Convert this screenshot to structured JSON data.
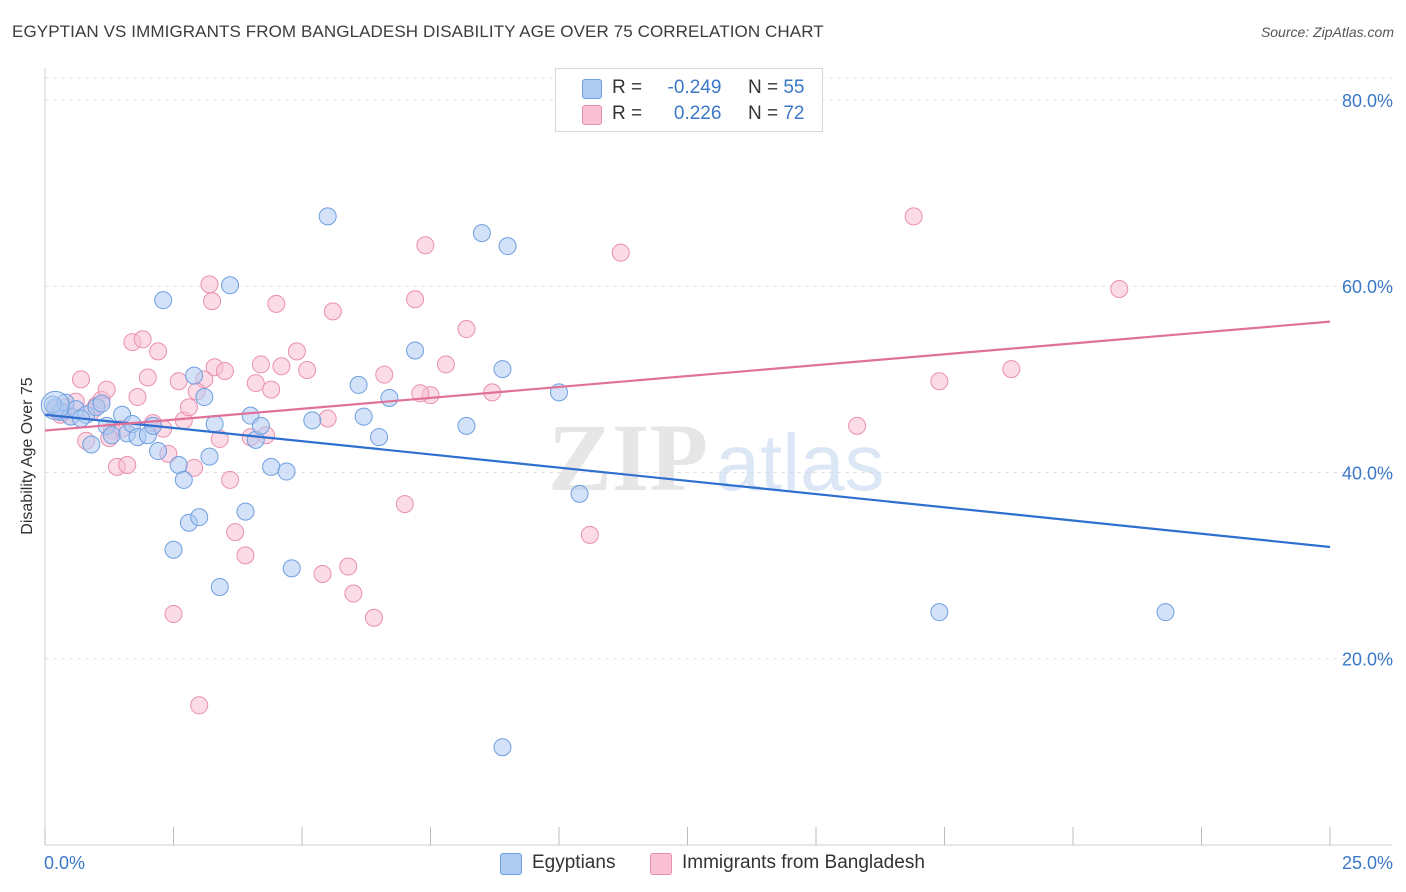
{
  "header": {
    "title": "EGYPTIAN VS IMMIGRANTS FROM BANGLADESH DISABILITY AGE OVER 75 CORRELATION CHART",
    "source": "Source: ZipAtlas.com"
  },
  "watermark": {
    "text_zip": "ZIP",
    "text_atlas": "atlas"
  },
  "legend_top": {
    "rows": [
      {
        "r_label": "R =",
        "r_value": "-0.249",
        "n_label": "N =",
        "n_value": "55"
      },
      {
        "r_label": "R =",
        "r_value": "0.226",
        "n_label": "N =",
        "n_value": "72"
      }
    ]
  },
  "legend_bottom": {
    "items": [
      "Egyptians",
      "Immigrants from Bangladesh"
    ]
  },
  "colors": {
    "blue_fill": "#aecbf2",
    "blue_stroke": "#6f9fe0",
    "blue_line": "#2f6fd0",
    "pink_fill": "#f8c0d2",
    "pink_stroke": "#ea8fae",
    "pink_line": "#e0729a",
    "axis_text": "#3b78c8"
  },
  "chart_data": {
    "type": "scatter",
    "title": "EGYPTIAN VS IMMIGRANTS FROM BANGLADESH DISABILITY AGE OVER 75 CORRELATION CHART",
    "xlabel": "",
    "ylabel": "Disability Age Over 75",
    "xlim": [
      0,
      25
    ],
    "ylim": [
      0,
      83
    ],
    "x_tick_labels": [
      "0.0%",
      "25.0%"
    ],
    "y_ticks": [
      20,
      40,
      60,
      80
    ],
    "y_tick_labels": [
      "20.0%",
      "40.0%",
      "60.0%",
      "80.0%"
    ],
    "grid": true,
    "legend_placement": "top-center",
    "series": [
      {
        "name": "Egyptians",
        "r": -0.249,
        "n": 55,
        "trend": {
          "x": [
            0,
            25
          ],
          "y": [
            46.2,
            32.0
          ]
        },
        "points": [
          {
            "x": 0.2,
            "y": 47.0
          },
          {
            "x": 0.3,
            "y": 46.5
          },
          {
            "x": 0.4,
            "y": 47.5
          },
          {
            "x": 0.5,
            "y": 46.0
          },
          {
            "x": 0.6,
            "y": 46.8
          },
          {
            "x": 0.8,
            "y": 46.2
          },
          {
            "x": 0.9,
            "y": 43.0
          },
          {
            "x": 1.0,
            "y": 47.0
          },
          {
            "x": 1.2,
            "y": 45.0
          },
          {
            "x": 1.3,
            "y": 44.0
          },
          {
            "x": 1.5,
            "y": 46.2
          },
          {
            "x": 1.6,
            "y": 44.2
          },
          {
            "x": 1.7,
            "y": 45.2
          },
          {
            "x": 1.8,
            "y": 43.8
          },
          {
            "x": 2.0,
            "y": 44.0
          },
          {
            "x": 2.1,
            "y": 45.0
          },
          {
            "x": 2.2,
            "y": 42.3
          },
          {
            "x": 2.3,
            "y": 58.5
          },
          {
            "x": 2.5,
            "y": 31.7
          },
          {
            "x": 2.6,
            "y": 40.8
          },
          {
            "x": 2.7,
            "y": 39.2
          },
          {
            "x": 2.8,
            "y": 34.6
          },
          {
            "x": 2.9,
            "y": 50.4
          },
          {
            "x": 3.0,
            "y": 35.2
          },
          {
            "x": 3.1,
            "y": 48.1
          },
          {
            "x": 3.2,
            "y": 41.7
          },
          {
            "x": 3.3,
            "y": 45.2
          },
          {
            "x": 3.4,
            "y": 27.7
          },
          {
            "x": 3.6,
            "y": 60.1
          },
          {
            "x": 3.9,
            "y": 35.8
          },
          {
            "x": 4.0,
            "y": 46.1
          },
          {
            "x": 4.1,
            "y": 43.5
          },
          {
            "x": 4.2,
            "y": 45.0
          },
          {
            "x": 4.4,
            "y": 40.6
          },
          {
            "x": 4.7,
            "y": 40.1
          },
          {
            "x": 4.8,
            "y": 29.7
          },
          {
            "x": 5.2,
            "y": 45.6
          },
          {
            "x": 5.5,
            "y": 67.5
          },
          {
            "x": 6.1,
            "y": 49.4
          },
          {
            "x": 6.2,
            "y": 46.0
          },
          {
            "x": 6.5,
            "y": 43.8
          },
          {
            "x": 6.7,
            "y": 48.0
          },
          {
            "x": 7.2,
            "y": 53.1
          },
          {
            "x": 8.2,
            "y": 45.0
          },
          {
            "x": 8.5,
            "y": 65.7
          },
          {
            "x": 8.9,
            "y": 10.5
          },
          {
            "x": 8.9,
            "y": 51.1
          },
          {
            "x": 9.0,
            "y": 64.3
          },
          {
            "x": 10.0,
            "y": 48.6
          },
          {
            "x": 10.4,
            "y": 37.7
          },
          {
            "x": 17.4,
            "y": 25.0
          },
          {
            "x": 21.8,
            "y": 25.0
          },
          {
            "x": 0.15,
            "y": 47.3
          },
          {
            "x": 0.7,
            "y": 45.8
          },
          {
            "x": 1.1,
            "y": 47.4
          }
        ]
      },
      {
        "name": "Immigrants from Bangladesh",
        "r": 0.226,
        "n": 72,
        "trend": {
          "x": [
            0,
            25
          ],
          "y": [
            44.5,
            56.2
          ]
        },
        "points": [
          {
            "x": 0.2,
            "y": 46.8
          },
          {
            "x": 0.3,
            "y": 46.2
          },
          {
            "x": 0.4,
            "y": 47.0
          },
          {
            "x": 0.5,
            "y": 46.0
          },
          {
            "x": 0.6,
            "y": 47.6
          },
          {
            "x": 0.7,
            "y": 50.0
          },
          {
            "x": 0.8,
            "y": 43.4
          },
          {
            "x": 0.9,
            "y": 46.5
          },
          {
            "x": 1.0,
            "y": 47.2
          },
          {
            "x": 1.1,
            "y": 47.8
          },
          {
            "x": 1.2,
            "y": 48.9
          },
          {
            "x": 1.3,
            "y": 44.5
          },
          {
            "x": 1.4,
            "y": 40.6
          },
          {
            "x": 1.5,
            "y": 44.7
          },
          {
            "x": 1.6,
            "y": 40.8
          },
          {
            "x": 1.7,
            "y": 54.0
          },
          {
            "x": 1.8,
            "y": 48.1
          },
          {
            "x": 1.9,
            "y": 54.3
          },
          {
            "x": 2.0,
            "y": 50.2
          },
          {
            "x": 2.1,
            "y": 45.3
          },
          {
            "x": 2.2,
            "y": 53.0
          },
          {
            "x": 2.3,
            "y": 44.7
          },
          {
            "x": 2.4,
            "y": 42.0
          },
          {
            "x": 2.5,
            "y": 24.8
          },
          {
            "x": 2.6,
            "y": 49.8
          },
          {
            "x": 2.7,
            "y": 45.6
          },
          {
            "x": 2.8,
            "y": 47.0
          },
          {
            "x": 2.9,
            "y": 40.5
          },
          {
            "x": 3.0,
            "y": 15.0
          },
          {
            "x": 3.1,
            "y": 50.0
          },
          {
            "x": 3.2,
            "y": 60.2
          },
          {
            "x": 3.25,
            "y": 58.4
          },
          {
            "x": 3.3,
            "y": 51.3
          },
          {
            "x": 3.4,
            "y": 43.6
          },
          {
            "x": 3.5,
            "y": 50.9
          },
          {
            "x": 3.6,
            "y": 39.2
          },
          {
            "x": 3.7,
            "y": 33.6
          },
          {
            "x": 3.9,
            "y": 31.1
          },
          {
            "x": 4.0,
            "y": 43.8
          },
          {
            "x": 4.1,
            "y": 49.6
          },
          {
            "x": 4.2,
            "y": 51.6
          },
          {
            "x": 4.4,
            "y": 48.9
          },
          {
            "x": 4.5,
            "y": 58.1
          },
          {
            "x": 4.6,
            "y": 51.4
          },
          {
            "x": 4.9,
            "y": 53.0
          },
          {
            "x": 5.1,
            "y": 51.0
          },
          {
            "x": 5.4,
            "y": 29.1
          },
          {
            "x": 5.5,
            "y": 45.8
          },
          {
            "x": 5.6,
            "y": 57.3
          },
          {
            "x": 5.9,
            "y": 29.9
          },
          {
            "x": 6.0,
            "y": 27.0
          },
          {
            "x": 6.4,
            "y": 24.4
          },
          {
            "x": 6.6,
            "y": 50.5
          },
          {
            "x": 7.0,
            "y": 36.6
          },
          {
            "x": 7.2,
            "y": 58.6
          },
          {
            "x": 7.4,
            "y": 64.4
          },
          {
            "x": 7.5,
            "y": 48.3
          },
          {
            "x": 7.8,
            "y": 51.6
          },
          {
            "x": 8.2,
            "y": 55.4
          },
          {
            "x": 8.7,
            "y": 48.6
          },
          {
            "x": 10.6,
            "y": 33.3
          },
          {
            "x": 11.2,
            "y": 63.6
          },
          {
            "x": 15.8,
            "y": 45.0
          },
          {
            "x": 16.9,
            "y": 67.5
          },
          {
            "x": 17.4,
            "y": 49.8
          },
          {
            "x": 18.8,
            "y": 51.1
          },
          {
            "x": 20.9,
            "y": 59.7
          },
          {
            "x": 7.3,
            "y": 48.5
          },
          {
            "x": 1.25,
            "y": 43.7
          },
          {
            "x": 0.35,
            "y": 46.5
          },
          {
            "x": 2.95,
            "y": 48.7
          },
          {
            "x": 4.3,
            "y": 44.0
          }
        ]
      }
    ]
  }
}
